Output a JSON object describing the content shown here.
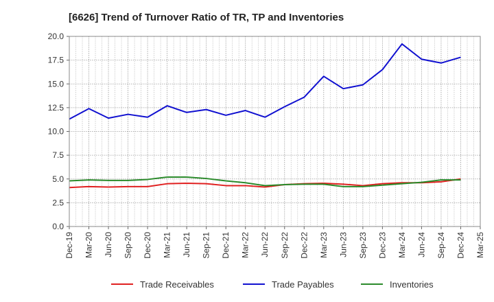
{
  "chart_data": {
    "type": "line",
    "title": "[6626]  Trend of Turnover Ratio of TR, TP and Inventories",
    "xlabel": "",
    "ylabel": "",
    "ylim": [
      0,
      20
    ],
    "yticks": [
      "0.0",
      "2.5",
      "5.0",
      "7.5",
      "10.0",
      "12.5",
      "15.0",
      "17.5",
      "20.0"
    ],
    "x_tick_labels": [
      "Dec-19",
      "Mar-20",
      "Jun-20",
      "Sep-20",
      "Dec-20",
      "Mar-21",
      "Jun-21",
      "Sep-21",
      "Dec-21",
      "Mar-22",
      "Jun-22",
      "Sep-22",
      "Dec-22",
      "Mar-23",
      "Jun-23",
      "Sep-23",
      "Dec-23",
      "Mar-24",
      "Jun-24",
      "Sep-24",
      "Dec-24",
      "Mar-25"
    ],
    "categories": [
      "Dec-19",
      "Mar-20",
      "Jun-20",
      "Sep-20",
      "Dec-20",
      "Mar-21",
      "Jun-21",
      "Sep-21",
      "Dec-21",
      "Mar-22",
      "Jun-22",
      "Sep-22",
      "Dec-22",
      "Mar-23",
      "Jun-23",
      "Sep-23",
      "Dec-23",
      "Mar-24",
      "Jun-24",
      "Sep-24",
      "Dec-24"
    ],
    "grid": true,
    "legend_position": "bottom",
    "series": [
      {
        "name": "Trade Receivables",
        "color": "#e02020",
        "values": [
          4.1,
          4.2,
          4.15,
          4.2,
          4.2,
          4.5,
          4.55,
          4.5,
          4.3,
          4.3,
          4.15,
          4.4,
          4.5,
          4.55,
          4.45,
          4.3,
          4.5,
          4.6,
          4.6,
          4.7,
          5.0
        ]
      },
      {
        "name": "Trade Payables",
        "color": "#1010d0",
        "values": [
          11.3,
          12.4,
          11.4,
          11.8,
          11.5,
          12.7,
          12.0,
          12.3,
          11.7,
          12.2,
          11.5,
          12.6,
          13.6,
          15.8,
          14.5,
          14.9,
          16.5,
          19.2,
          17.6,
          17.2,
          17.8
        ]
      },
      {
        "name": "Inventories",
        "color": "#2a8a2a",
        "values": [
          4.8,
          4.9,
          4.85,
          4.85,
          4.95,
          5.2,
          5.2,
          5.05,
          4.8,
          4.6,
          4.3,
          4.4,
          4.45,
          4.45,
          4.2,
          4.2,
          4.35,
          4.5,
          4.65,
          4.9,
          4.9
        ]
      }
    ]
  }
}
